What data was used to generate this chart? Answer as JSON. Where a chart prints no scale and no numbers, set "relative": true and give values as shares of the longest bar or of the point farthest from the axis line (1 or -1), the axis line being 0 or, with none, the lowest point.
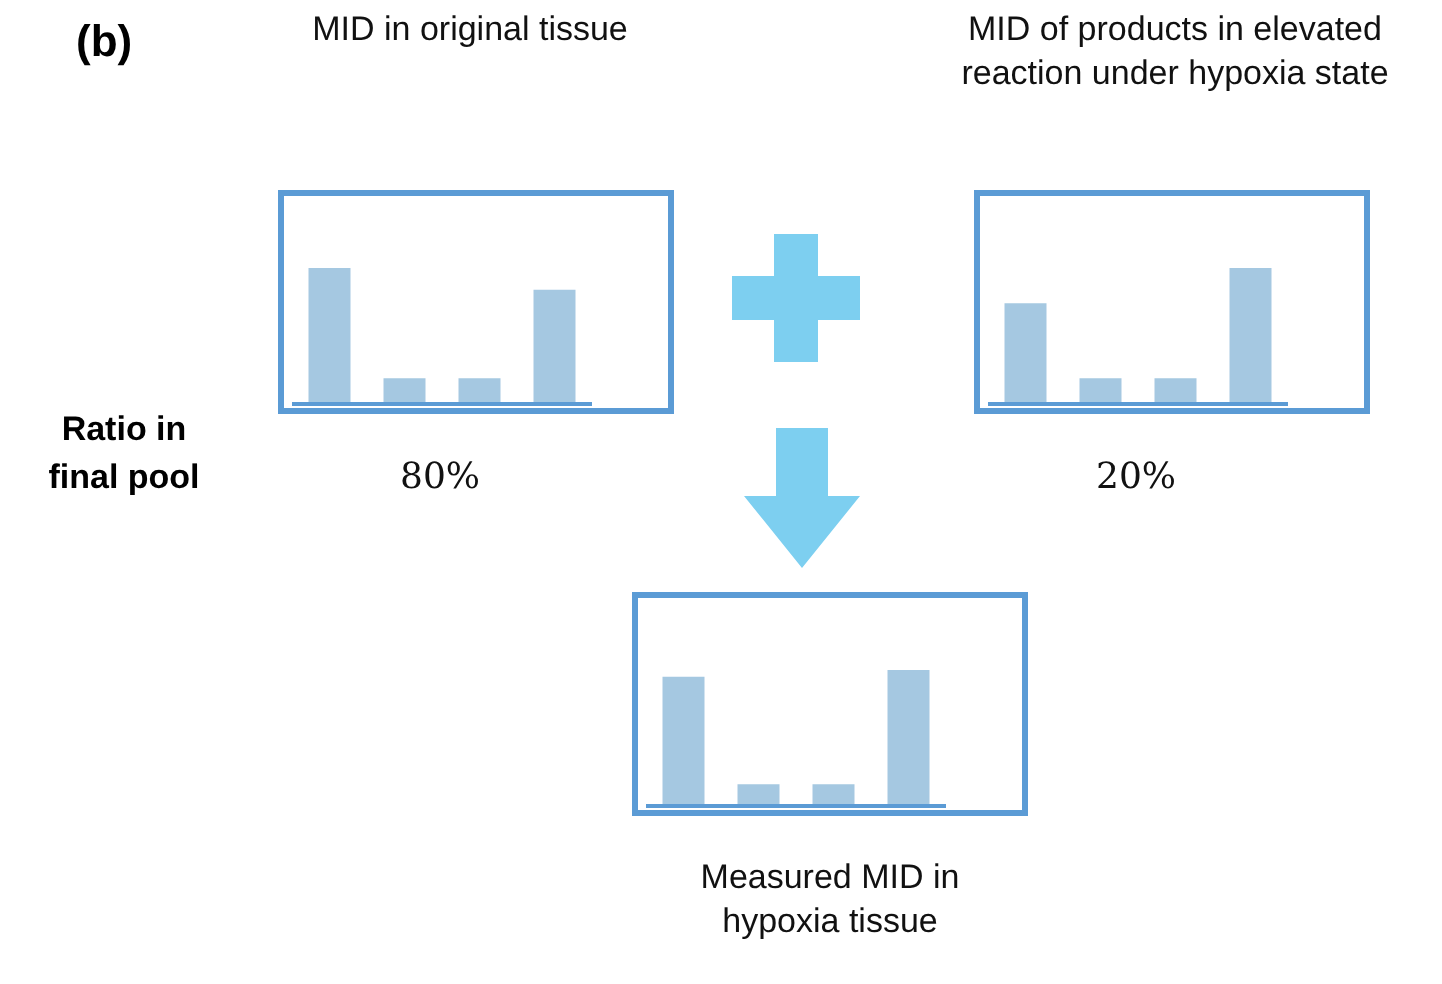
{
  "chart_data": [
    {
      "type": "bar",
      "title": "MID in original tissue",
      "relative": true,
      "categories": [
        null,
        null,
        null,
        null
      ],
      "values": [
        1,
        0.19,
        0.19,
        0.84
      ],
      "color": "#a5c8e1",
      "annotations": [
        "80%"
      ]
    },
    {
      "type": "bar",
      "title": "MID of products in elevated reaction under hypoxia state",
      "relative": true,
      "categories": [
        null,
        null,
        null,
        null
      ],
      "values": [
        0.74,
        0.19,
        0.19,
        1
      ],
      "color": "#a5c8e1",
      "annotations": [
        "20%"
      ]
    },
    {
      "type": "bar",
      "title": "Measured MID in hypoxia tissue",
      "relative": true,
      "categories": [
        null,
        null,
        null,
        null
      ],
      "values": [
        0.95,
        0.16,
        0.16,
        1
      ],
      "color": "#a5c8e1"
    },
    {
      "type": "other",
      "title": "(b)",
      "annotations": [
        "Ratio in final pool"
      ]
    }
  ]
}
